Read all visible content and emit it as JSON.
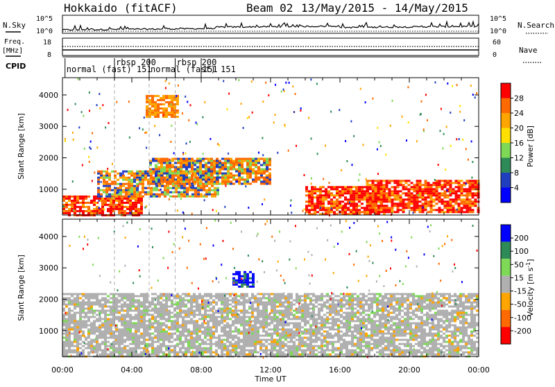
{
  "header": {
    "title": "Hokkaido (fitACF)",
    "beam": "Beam 02",
    "date_range": "13/May/2015 - 14/May/2015"
  },
  "strips": {
    "nsky_label": "N.Sky",
    "nsky_ticks": [
      "10^5",
      "10^0"
    ],
    "nsearch_ticks": [
      "10^5",
      "10^0"
    ],
    "nsearch_label": "N.Search",
    "freq_label_1": "Freq.",
    "freq_label_2": "[MHz]",
    "freq_ticks": [
      "18",
      "8"
    ],
    "nave_ticks": [
      "60",
      "0"
    ],
    "nave_label": "Nave",
    "cpid_label": "CPID",
    "cpid_segments": [
      {
        "label": "normal (fast) 151",
        "start_h": 0.15,
        "row": "low"
      },
      {
        "label": "rbsp 200",
        "start_h": 3.0,
        "row": "high"
      },
      {
        "label": "normal (fast) 151",
        "start_h": 5.0,
        "row": "low"
      },
      {
        "label": "rbsp 200",
        "start_h": 6.5,
        "row": "high"
      },
      {
        "label": "151",
        "start_h": 8.0,
        "row": "low"
      }
    ]
  },
  "chart_data": [
    {
      "type": "heatmap",
      "ylabel": "Slant Range [km]",
      "xlim_hours": [
        0,
        24
      ],
      "ylim_km": [
        180,
        4550
      ],
      "yticks": [
        "1000",
        "2000",
        "3000",
        "4000"
      ],
      "colorbar_label": "Power [dB]",
      "colorbar_ticks": [
        "28",
        "24",
        "20",
        "16",
        "12",
        "8",
        "4"
      ],
      "colorbar_colors": [
        "#ff0000",
        "#ff6a00",
        "#ffa500",
        "#ffe000",
        "#7ed957",
        "#2e8b57",
        "#1f3fbf",
        "#0000ff"
      ],
      "regions": [
        {
          "t0": 0.0,
          "t1": 4.5,
          "r0": 200,
          "r1": 800,
          "level": "high"
        },
        {
          "t0": 2.0,
          "t1": 9.0,
          "r0": 800,
          "r1": 1600,
          "level": "mid"
        },
        {
          "t0": 5.0,
          "t1": 12.0,
          "r0": 1200,
          "r1": 2000,
          "level": "mid"
        },
        {
          "t0": 14.0,
          "t1": 18.5,
          "r0": 200,
          "r1": 1100,
          "level": "high"
        },
        {
          "t0": 17.5,
          "t1": 24.0,
          "r0": 300,
          "r1": 1300,
          "level": "high"
        },
        {
          "t0": 4.8,
          "t1": 6.6,
          "r0": 3300,
          "r1": 4000,
          "level": "low"
        }
      ]
    },
    {
      "type": "heatmap",
      "ylabel": "Slant Range [km]",
      "xlim_hours": [
        0,
        24
      ],
      "ylim_km": [
        180,
        4550
      ],
      "yticks": [
        "1000",
        "2000",
        "3000",
        "4000"
      ],
      "colorbar_label": "Velocity [m s^-1]",
      "colorbar_ticks": [
        "200",
        "100",
        "50",
        "15",
        "-15",
        "-50",
        "-100",
        "-200"
      ],
      "colorbar_colors": [
        "#0000ff",
        "#2e8b57",
        "#7ed957",
        "#b0b0b0",
        "#ffa500",
        "#ff6a00",
        "#ff0000"
      ],
      "regions": [
        {
          "t0": 0.0,
          "t1": 24.0,
          "r0": 200,
          "r1": 2200,
          "level": "ground"
        },
        {
          "t0": 9.8,
          "t1": 11.0,
          "r0": 2400,
          "r1": 2900,
          "level": "positive"
        }
      ]
    }
  ],
  "x_axis": {
    "label": "Time UT",
    "ticks": [
      "00:00",
      "04:00",
      "08:00",
      "12:00",
      "16:00",
      "20:00",
      "00:00"
    ]
  }
}
